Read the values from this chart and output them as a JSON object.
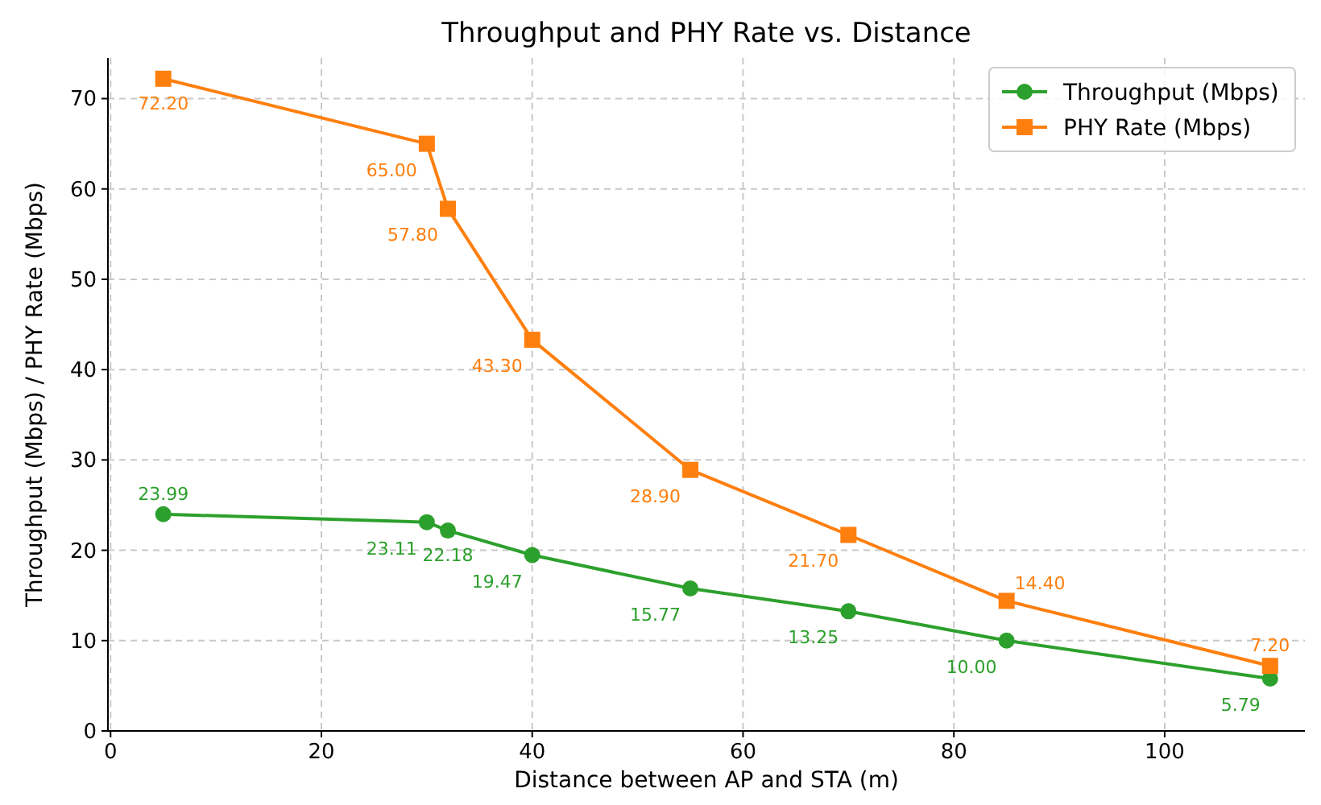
{
  "chart_data": {
    "type": "line",
    "title": "Throughput and PHY Rate vs. Distance",
    "xlabel": "Distance between AP and STA (m)",
    "ylabel": "Throughput (Mbps) / PHY Rate (Mbps)",
    "x": [
      5,
      30,
      32,
      40,
      55,
      70,
      85,
      110
    ],
    "series": [
      {
        "name": "Throughput (Mbps)",
        "color": "#2ca02c",
        "marker": "circle",
        "values": [
          23.99,
          23.11,
          22.18,
          19.47,
          15.77,
          13.25,
          10.0,
          5.79
        ],
        "value_labels": [
          "23.99",
          "23.11",
          "22.18",
          "19.47",
          "15.77",
          "13.25",
          "10.00",
          "5.79"
        ]
      },
      {
        "name": "PHY Rate (Mbps)",
        "color": "#ff7f0e",
        "marker": "square",
        "values": [
          72.2,
          65.0,
          57.8,
          43.3,
          28.9,
          21.7,
          14.4,
          7.2
        ],
        "value_labels": [
          "72.20",
          "65.00",
          "57.80",
          "43.30",
          "28.90",
          "21.70",
          "14.40",
          "7.20"
        ]
      }
    ],
    "xlim": [
      -0.25,
      113.3
    ],
    "xticks": [
      0,
      20,
      40,
      60,
      80,
      100
    ],
    "ylim": [
      0,
      74.5
    ],
    "yticks": [
      0,
      10,
      20,
      30,
      40,
      50,
      60,
      70
    ],
    "grid": true,
    "legend": "top right",
    "line_style": "solid"
  }
}
